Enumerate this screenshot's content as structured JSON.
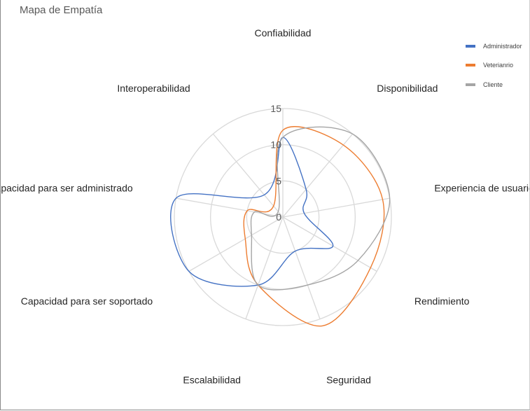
{
  "title": "Mapa de Empatía",
  "chart_data": {
    "type": "radar",
    "title": "",
    "axes": [
      "Confiabilidad",
      "Disponibilidad",
      "Experiencia de usuario",
      "Rendimiento",
      "Seguridad",
      "Escalabilidad",
      "Capacidad para ser soportado",
      "Capacidad para ser administrado",
      "Interoperabilidad"
    ],
    "rlim": [
      0,
      15
    ],
    "ticks": [
      0,
      5,
      10,
      15
    ],
    "grid_rings": [
      0,
      5,
      10,
      15
    ],
    "series": [
      {
        "name": "Administrador",
        "color": "#4472c4",
        "values": [
          11,
          5,
          3,
          8,
          5,
          10,
          15,
          15,
          4
        ]
      },
      {
        "name": "Veterianrio",
        "color": "#ed7d31",
        "values": [
          12,
          13,
          14,
          14,
          16,
          10,
          6,
          5,
          2
        ]
      },
      {
        "name": "Cliente",
        "color": "#a5a5a5",
        "values": [
          11,
          15,
          15,
          12,
          10,
          10,
          5,
          4,
          1
        ]
      }
    ],
    "legend_position": "top-right",
    "grid": true
  }
}
